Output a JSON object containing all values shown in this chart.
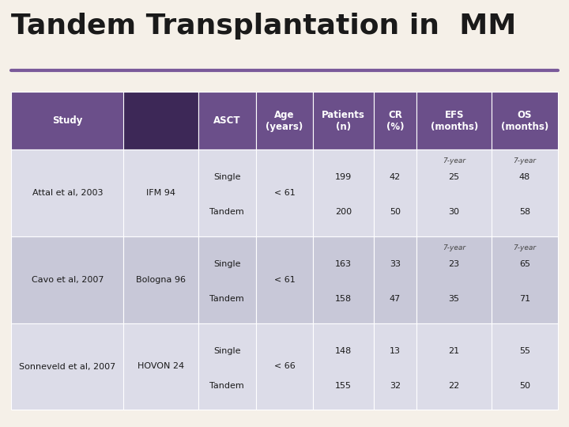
{
  "title": "Tandem Transplantation in  MM",
  "bg_color": "#f5f0e8",
  "title_color": "#1a1a1a",
  "header_bg": "#6b4f8a",
  "header_text_color": "#ffffff",
  "divider_color": "#7a5a9a",
  "header_labels": [
    "Study",
    "",
    "ASCT",
    "Age\n(years)",
    "Patients\n(n)",
    "CR\n(%)",
    "EFS\n(months)",
    "OS\n(months)"
  ],
  "col_props": [
    0.195,
    0.13,
    0.1,
    0.1,
    0.105,
    0.075,
    0.13,
    0.115
  ],
  "rows": [
    {
      "study": "Attal et al, 2003",
      "trial": "IFM 94",
      "asct": [
        "Single",
        "Tandem"
      ],
      "age": "< 61",
      "patients": [
        "199",
        "200"
      ],
      "cr": [
        "42",
        "50"
      ],
      "efs_label": "7-year",
      "efs": [
        "25",
        "30"
      ],
      "os_label": "7-year",
      "os": [
        "48",
        "58"
      ],
      "bg": "#dcdce8"
    },
    {
      "study": "Cavo et al, 2007",
      "trial": "Bologna 96",
      "asct": [
        "Single",
        "Tandem"
      ],
      "age": "< 61",
      "patients": [
        "163",
        "158"
      ],
      "cr": [
        "33",
        "47"
      ],
      "efs_label": "7-year",
      "efs": [
        "23",
        "35"
      ],
      "os_label": "7-year",
      "os": [
        "65",
        "71"
      ],
      "bg": "#c8c8d8"
    },
    {
      "study": "Sonneveld et al, 2007",
      "trial": "HOVON 24",
      "asct": [
        "Single",
        "Tandem"
      ],
      "age": "< 66",
      "patients": [
        "148",
        "155"
      ],
      "cr": [
        "13",
        "32"
      ],
      "efs_label": "",
      "efs": [
        "21",
        "22"
      ],
      "os_label": "",
      "os": [
        "55",
        "50"
      ],
      "bg": "#dcdce8"
    }
  ]
}
